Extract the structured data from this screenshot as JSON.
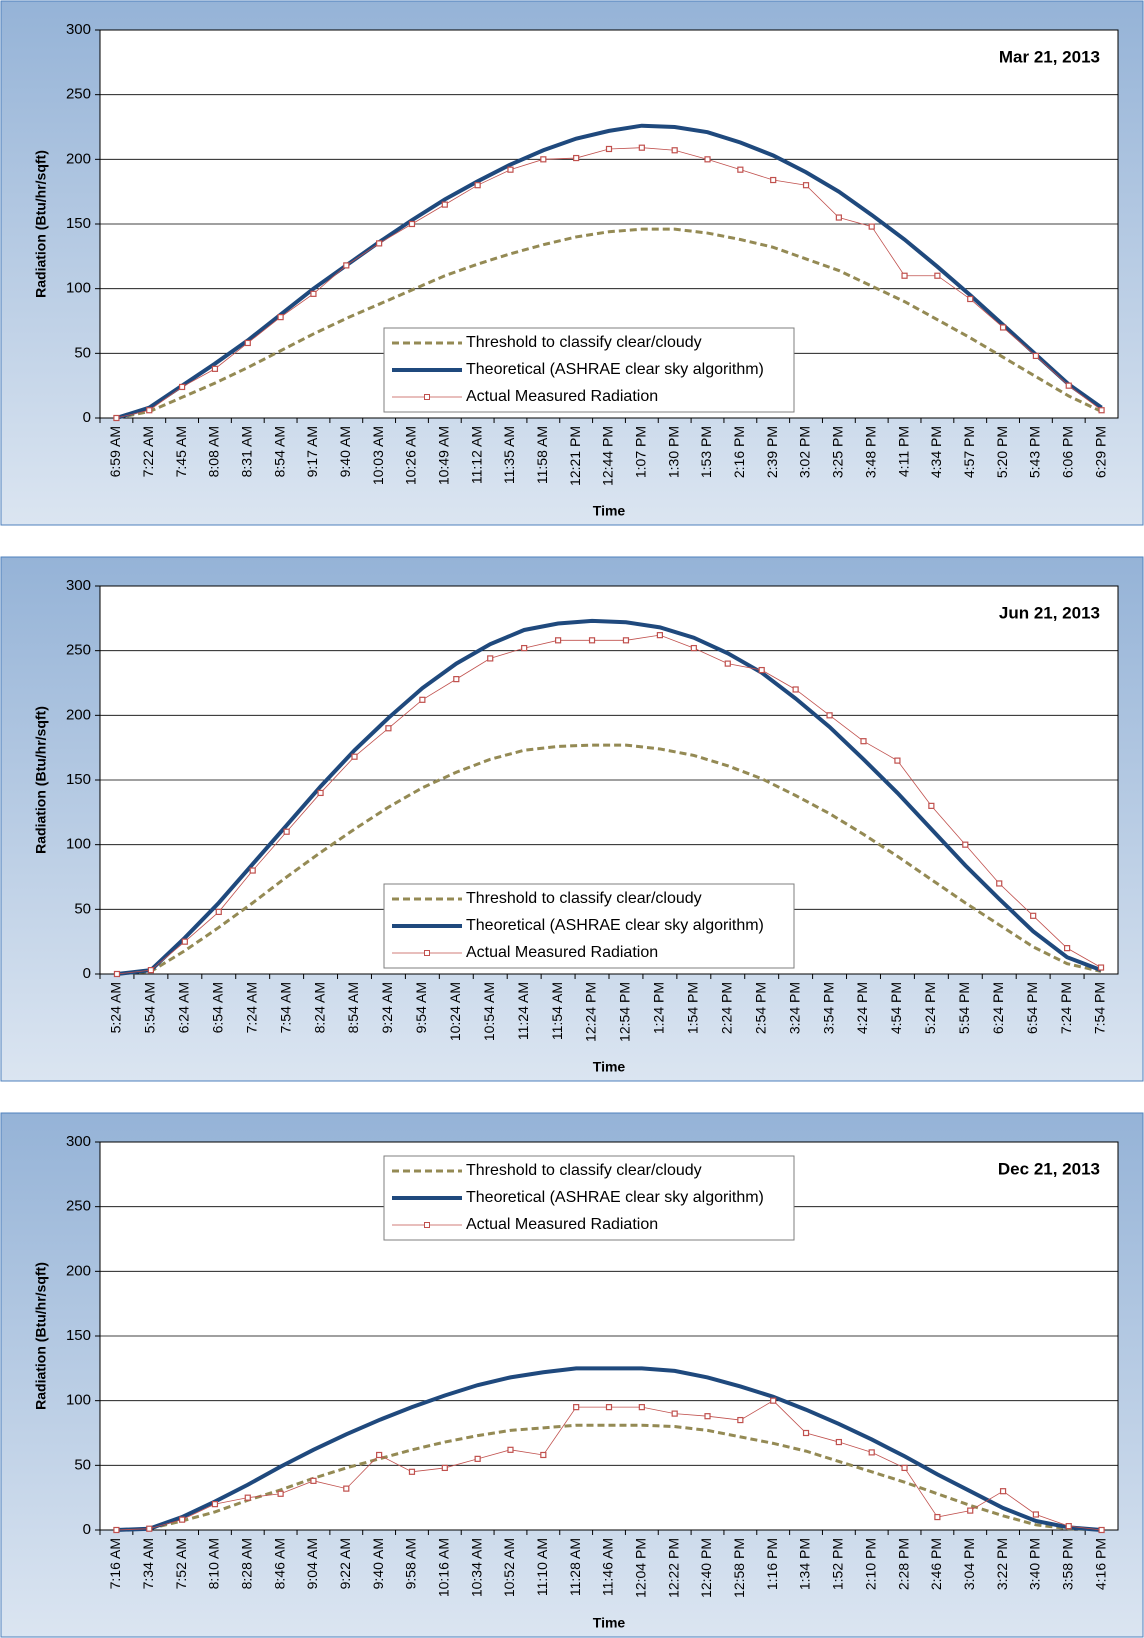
{
  "chart_data": [
    {
      "type": "line",
      "annotation": "Mar 21, 2013",
      "ylabel": "Radiation (Btu/hr/sqft)",
      "xlabel": "Time",
      "ylim": [
        0,
        300
      ],
      "yticks": [
        0,
        50,
        100,
        150,
        200,
        250,
        300
      ],
      "grid": true,
      "legend_loc": "lower center",
      "categories": [
        "6:59 AM",
        "7:22 AM",
        "7:45 AM",
        "8:08 AM",
        "8:31 AM",
        "8:54 AM",
        "9:17 AM",
        "9:40 AM",
        "10:03 AM",
        "10:26 AM",
        "10:49 AM",
        "11:12 AM",
        "11:35 AM",
        "11:58 AM",
        "12:21 PM",
        "12:44 PM",
        "1:07 PM",
        "1:30 PM",
        "1:53 PM",
        "2:16 PM",
        "2:39 PM",
        "3:02 PM",
        "3:25 PM",
        "3:48 PM",
        "4:11 PM",
        "4:34 PM",
        "4:57 PM",
        "5:20 PM",
        "5:43 PM",
        "6:06 PM",
        "6:29 PM"
      ],
      "series": [
        {
          "name": "Threshold to classify clear/cloudy",
          "color": "#948a54",
          "line_style": "dashed",
          "values": [
            0,
            5,
            16,
            27,
            39,
            52,
            65,
            77,
            88,
            99,
            110,
            119,
            127,
            134,
            140,
            144,
            146,
            146,
            143,
            138,
            132,
            123,
            114,
            102,
            90,
            76,
            62,
            47,
            32,
            17,
            5
          ]
        },
        {
          "name": "Theoretical (ASHRAE clear sky algorithm)",
          "color": "#1f497d",
          "line_style": "solid",
          "values": [
            0,
            8,
            25,
            42,
            60,
            80,
            100,
            118,
            136,
            153,
            169,
            183,
            196,
            207,
            216,
            222,
            226,
            225,
            221,
            213,
            203,
            190,
            175,
            157,
            138,
            117,
            95,
            72,
            49,
            26,
            8
          ]
        },
        {
          "name": "Actual Measured Radiation",
          "color": "#c0504d",
          "line_style": "marker",
          "values": [
            0,
            6,
            24,
            38,
            58,
            78,
            96,
            118,
            135,
            150,
            165,
            180,
            192,
            200,
            201,
            208,
            209,
            207,
            200,
            192,
            184,
            180,
            155,
            148,
            110,
            110,
            92,
            70,
            48,
            25,
            6
          ]
        }
      ]
    },
    {
      "type": "line",
      "annotation": "Jun 21, 2013",
      "ylabel": "Radiation (Btu/hr/sqft)",
      "xlabel": "Time",
      "ylim": [
        0,
        300
      ],
      "yticks": [
        0,
        50,
        100,
        150,
        200,
        250,
        300
      ],
      "grid": true,
      "legend_loc": "lower center",
      "categories": [
        "5:24 AM",
        "5:54 AM",
        "6:24 AM",
        "6:54 AM",
        "7:24 AM",
        "7:54 AM",
        "8:24 AM",
        "8:54 AM",
        "9:24 AM",
        "9:54 AM",
        "10:24 AM",
        "10:54 AM",
        "11:24 AM",
        "11:54 AM",
        "12:24 PM",
        "12:54 PM",
        "1:24 PM",
        "1:54 PM",
        "2:24 PM",
        "2:54 PM",
        "3:24 PM",
        "3:54 PM",
        "4:24 PM",
        "4:54 PM",
        "5:24 PM",
        "5:54 PM",
        "6:24 PM",
        "6:54 PM",
        "7:24 PM",
        "7:54 PM"
      ],
      "series": [
        {
          "name": "Threshold to classify clear/cloudy",
          "color": "#948a54",
          "line_style": "dashed",
          "values": [
            0,
            2,
            18,
            36,
            55,
            75,
            94,
            112,
            129,
            144,
            156,
            166,
            173,
            176,
            177,
            177,
            174,
            169,
            161,
            151,
            138,
            124,
            108,
            91,
            73,
            55,
            38,
            21,
            8,
            2
          ]
        },
        {
          "name": "Theoretical (ASHRAE clear sky algorithm)",
          "color": "#1f497d",
          "line_style": "solid",
          "values": [
            0,
            3,
            28,
            55,
            85,
            115,
            145,
            173,
            198,
            221,
            240,
            255,
            266,
            271,
            273,
            272,
            268,
            260,
            248,
            233,
            213,
            191,
            166,
            140,
            112,
            84,
            58,
            33,
            13,
            3
          ]
        },
        {
          "name": "Actual Measured Radiation",
          "color": "#c0504d",
          "line_style": "marker",
          "values": [
            0,
            3,
            25,
            48,
            80,
            110,
            140,
            168,
            190,
            212,
            228,
            244,
            252,
            258,
            258,
            258,
            262,
            252,
            240,
            235,
            220,
            200,
            180,
            165,
            130,
            100,
            70,
            45,
            20,
            5
          ]
        }
      ]
    },
    {
      "type": "line",
      "annotation": "Dec 21, 2013",
      "ylabel": "Radiation (Btu/hr/sqft)",
      "xlabel": "Time",
      "ylim": [
        0,
        300
      ],
      "yticks": [
        0,
        50,
        100,
        150,
        200,
        250,
        300
      ],
      "grid": true,
      "legend_loc": "upper center",
      "categories": [
        "7:16 AM",
        "7:34 AM",
        "7:52 AM",
        "8:10 AM",
        "8:28 AM",
        "8:46 AM",
        "9:04 AM",
        "9:22 AM",
        "9:40 AM",
        "9:58 AM",
        "10:16 AM",
        "10:34 AM",
        "10:52 AM",
        "11:10 AM",
        "11:28 AM",
        "11:46 AM",
        "12:04 PM",
        "12:22 PM",
        "12:40 PM",
        "12:58 PM",
        "1:16 PM",
        "1:34 PM",
        "1:52 PM",
        "2:10 PM",
        "2:28 PM",
        "2:46 PM",
        "3:04 PM",
        "3:22 PM",
        "3:40 PM",
        "3:58 PM",
        "4:16 PM"
      ],
      "series": [
        {
          "name": "Threshold to classify clear/cloudy",
          "color": "#948a54",
          "line_style": "dashed",
          "values": [
            0,
            1,
            7,
            14,
            23,
            31,
            40,
            48,
            55,
            62,
            68,
            73,
            77,
            79,
            81,
            81,
            81,
            80,
            77,
            72,
            67,
            61,
            53,
            45,
            37,
            28,
            19,
            11,
            4,
            1,
            0
          ]
        },
        {
          "name": "Theoretical (ASHRAE clear sky algorithm)",
          "color": "#1f497d",
          "line_style": "solid",
          "values": [
            0,
            1,
            10,
            22,
            35,
            49,
            62,
            74,
            85,
            95,
            104,
            112,
            118,
            122,
            125,
            125,
            125,
            123,
            118,
            111,
            103,
            93,
            82,
            70,
            57,
            43,
            30,
            17,
            7,
            2,
            0
          ]
        },
        {
          "name": "Actual Measured Radiation",
          "color": "#c0504d",
          "line_style": "marker",
          "values": [
            0,
            1,
            8,
            20,
            25,
            28,
            38,
            32,
            58,
            45,
            48,
            55,
            62,
            58,
            95,
            95,
            95,
            90,
            88,
            85,
            100,
            75,
            68,
            60,
            48,
            10,
            15,
            30,
            12,
            3,
            0
          ]
        }
      ]
    }
  ]
}
